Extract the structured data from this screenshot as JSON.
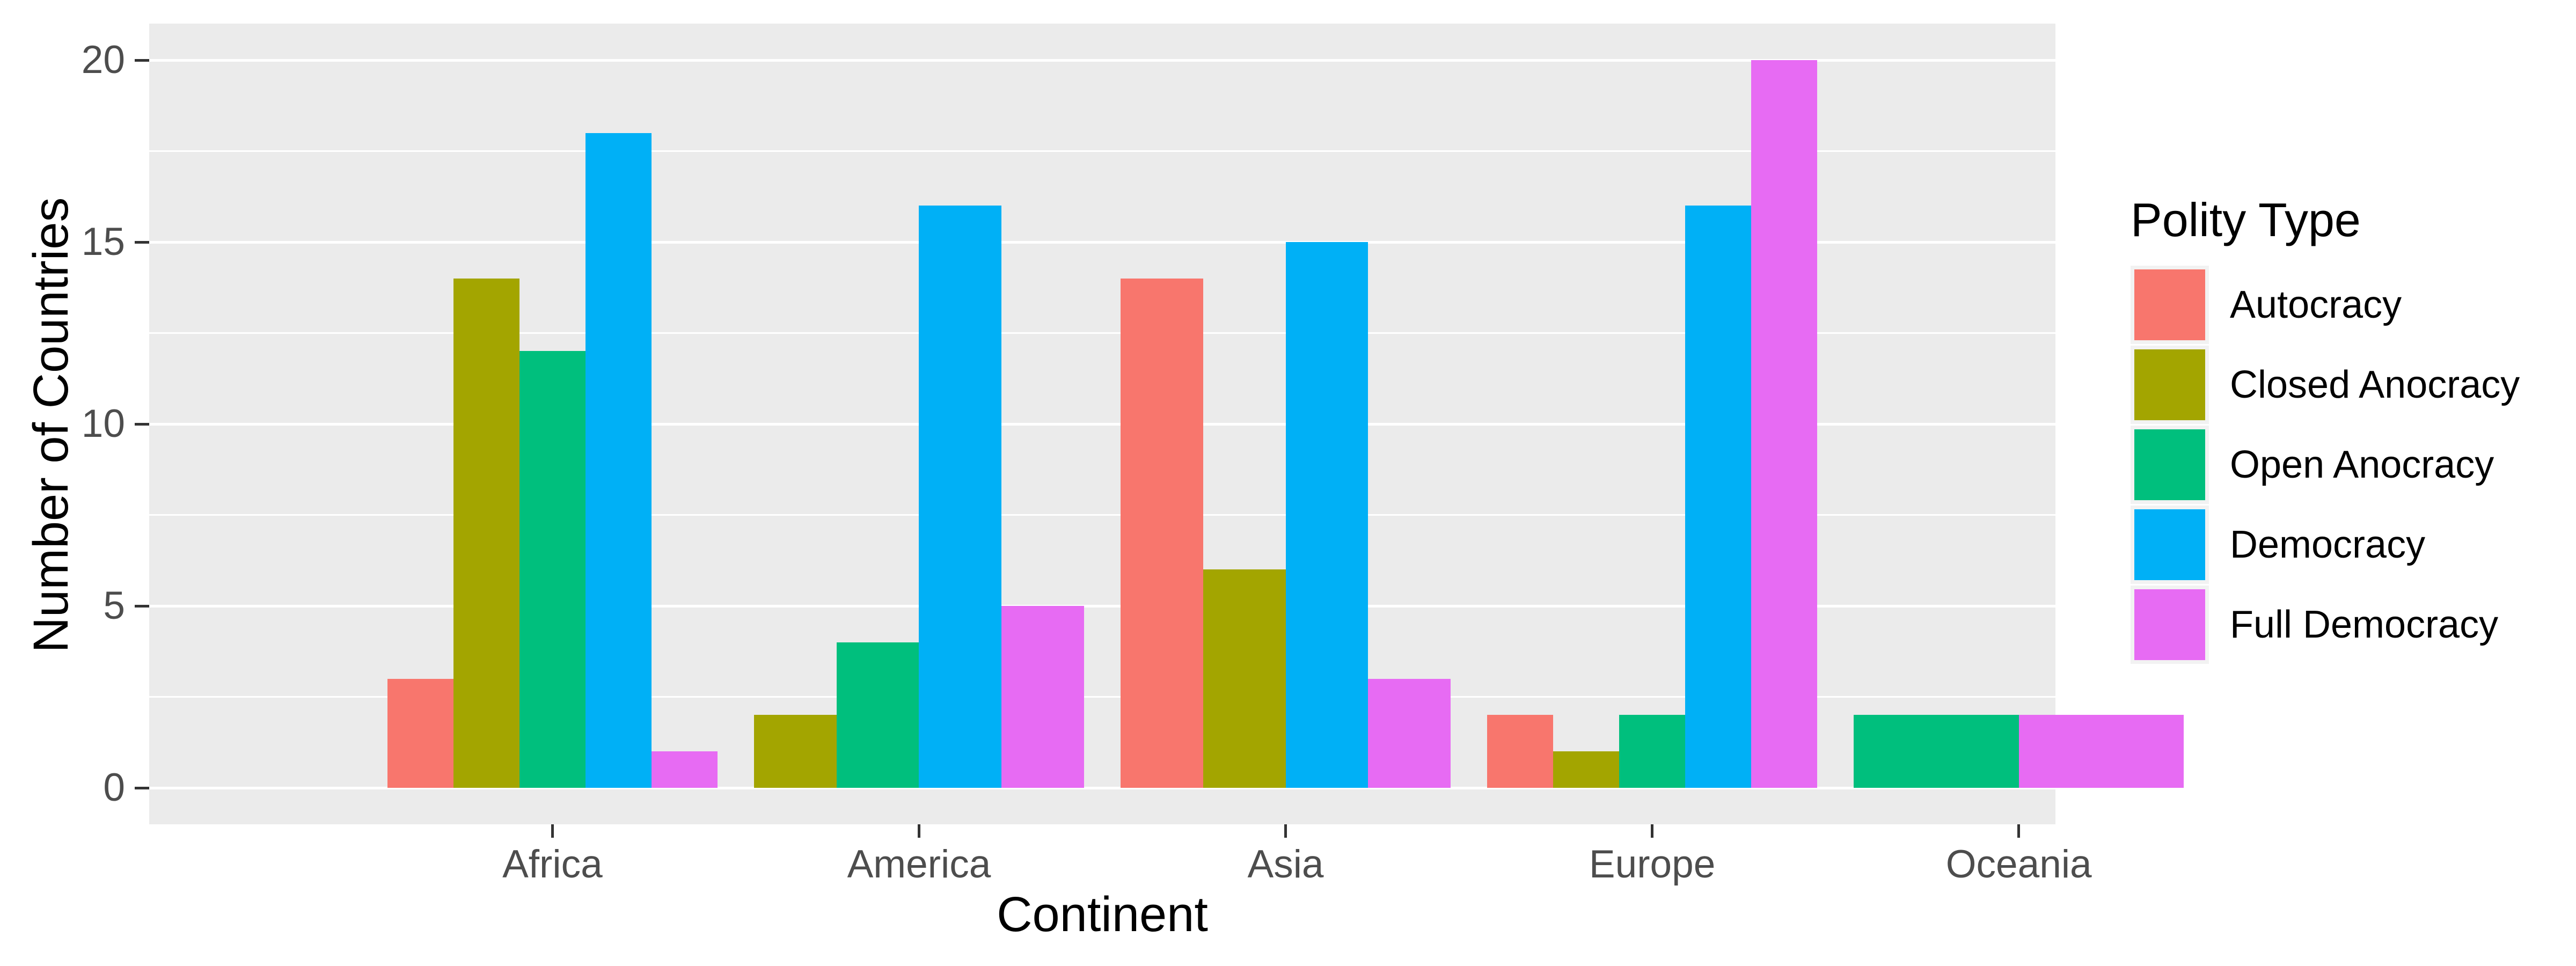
{
  "figure": {
    "background": "#FFFFFF"
  },
  "panel": {
    "background": "#EBEBEB",
    "major_grid_color": "#FFFFFF",
    "minor_grid_color": "#FFFFFF"
  },
  "axes": {
    "x_label": "Continent",
    "y_label": "Number of Countries",
    "x_tick_labels": [
      "Africa",
      "America",
      "Asia",
      "Europe",
      "Oceania"
    ],
    "y_tick_labels": [
      "0",
      "5",
      "10",
      "15",
      "20"
    ],
    "tick_color": "#333333",
    "tick_label_color": "#4D4D4D"
  },
  "legend": {
    "title": "Polity Type",
    "key_background": "#F2F2F2",
    "position": "right",
    "items": [
      {
        "label": "Autocracy",
        "color": "#F8766D"
      },
      {
        "label": "Closed Anocracy",
        "color": "#A3A500"
      },
      {
        "label": "Open Anocracy",
        "color": "#00BF7D"
      },
      {
        "label": "Democracy",
        "color": "#00B0F6"
      },
      {
        "label": "Full Democracy",
        "color": "#E76BF3"
      }
    ]
  },
  "chart_data": {
    "type": "bar",
    "title": "",
    "xlabel": "Continent",
    "ylabel": "Number of Countries",
    "categories": [
      "Africa",
      "America",
      "Asia",
      "Europe",
      "Oceania"
    ],
    "series": [
      {
        "name": "Autocracy",
        "color": "#F8766D",
        "values": [
          3,
          null,
          14,
          2,
          null
        ]
      },
      {
        "name": "Closed Anocracy",
        "color": "#A3A500",
        "values": [
          14,
          2,
          6,
          1,
          null
        ]
      },
      {
        "name": "Open Anocracy",
        "color": "#00BF7D",
        "values": [
          12,
          4,
          null,
          2,
          2
        ]
      },
      {
        "name": "Democracy",
        "color": "#00B0F6",
        "values": [
          18,
          16,
          15,
          16,
          null
        ]
      },
      {
        "name": "Full Democracy",
        "color": "#E76BF3",
        "values": [
          1,
          5,
          3,
          20,
          2
        ]
      }
    ],
    "ylim": [
      0,
      20
    ],
    "y_major_ticks": [
      0,
      5,
      10,
      15,
      20
    ],
    "y_minor_ticks": [
      2.5,
      7.5,
      12.5,
      17.5
    ],
    "grid": true,
    "bar_grouping": "dodge",
    "legend_position": "right"
  }
}
